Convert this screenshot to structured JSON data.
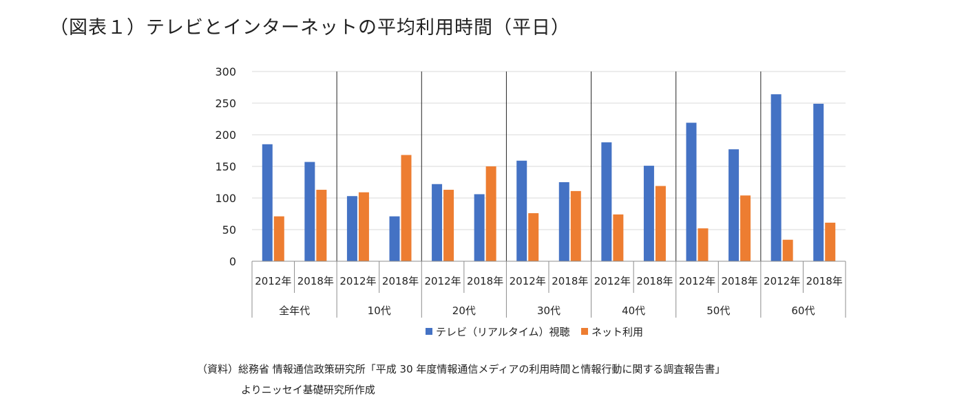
{
  "title": "（図表１）テレビとインターネットの平均利用時間（平日）",
  "source": {
    "line1": "（資料）総務省 情報通信政策研究所「平成 30 年度情報通信メディアの利用時間と情報行動に関する調査報告書」",
    "line2": "よりニッセイ基礎研究所作成"
  },
  "chart_data": {
    "type": "bar",
    "groups": [
      {
        "label": "全年代",
        "subcategories": [
          "2012年",
          "2018年"
        ]
      },
      {
        "label": "10代",
        "subcategories": [
          "2012年",
          "2018年"
        ]
      },
      {
        "label": "20代",
        "subcategories": [
          "2012年",
          "2018年"
        ]
      },
      {
        "label": "30代",
        "subcategories": [
          "2012年",
          "2018年"
        ]
      },
      {
        "label": "40代",
        "subcategories": [
          "2012年",
          "2018年"
        ]
      },
      {
        "label": "50代",
        "subcategories": [
          "2012年",
          "2018年"
        ]
      },
      {
        "label": "60代",
        "subcategories": [
          "2012年",
          "2018年"
        ]
      }
    ],
    "series": [
      {
        "name": "テレビ（リアルタイム）視聴",
        "color": "#4472C4",
        "values": [
          185,
          157,
          103,
          71,
          122,
          106,
          159,
          125,
          188,
          151,
          219,
          177,
          264,
          249
        ]
      },
      {
        "name": "ネット利用",
        "color": "#ED7D31",
        "values": [
          71,
          113,
          109,
          168,
          113,
          150,
          76,
          111,
          74,
          119,
          52,
          104,
          34,
          61
        ]
      }
    ],
    "ylim": [
      0,
      300
    ],
    "yticks": [
      0,
      50,
      100,
      150,
      200,
      250,
      300
    ],
    "grid": true,
    "legend_position": "bottom"
  }
}
